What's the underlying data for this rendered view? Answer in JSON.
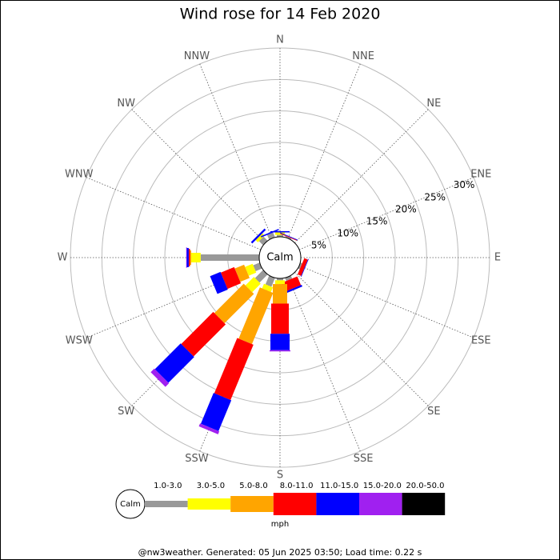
{
  "chart_data": {
    "type": "windrose",
    "title": "Wind rose for 14 Feb 2020",
    "categories": [
      "N",
      "NNE",
      "NE",
      "ENE",
      "E",
      "ESE",
      "SE",
      "SSE",
      "S",
      "SSW",
      "SW",
      "WSW",
      "W",
      "WNW",
      "NW",
      "NNW"
    ],
    "calm_label": "Calm",
    "rlim": [
      0,
      30
    ],
    "rticks": [
      {
        "value": 5,
        "label": "5%"
      },
      {
        "value": 10,
        "label": "10%"
      },
      {
        "value": 15,
        "label": "15%"
      },
      {
        "value": 20,
        "label": "20%"
      },
      {
        "value": 25,
        "label": "25%"
      },
      {
        "value": 30,
        "label": "30%"
      }
    ],
    "unit": "mph",
    "series": [
      {
        "name": "1.0-3.0",
        "color": "#999999",
        "values": [
          0.3,
          0.2,
          0,
          0,
          0,
          0.3,
          0,
          0.5,
          0.3,
          1.5,
          1.8,
          1.1,
          9.3,
          0,
          0.9,
          0.8
        ]
      },
      {
        "name": "3.0-5.0",
        "color": "#ffff00",
        "values": [
          0.4,
          0,
          0,
          0,
          0,
          0,
          0,
          0,
          0.6,
          0.8,
          1.9,
          1.3,
          1.5,
          0,
          0.5,
          0
        ]
      },
      {
        "name": "5.0-8.0",
        "color": "#ffa500",
        "values": [
          0,
          0,
          0,
          0,
          0,
          0,
          0,
          0,
          3.1,
          8.8,
          6.6,
          1.6,
          0.2,
          0,
          0,
          0
        ]
      },
      {
        "name": "8.0-11.0",
        "color": "#ff0000",
        "values": [
          0,
          0.1,
          0,
          0,
          0,
          0.6,
          0,
          1.5,
          4.8,
          9.5,
          7.2,
          2.3,
          0.2,
          0,
          0,
          0
        ]
      },
      {
        "name": "11.0-15.0",
        "color": "#0000ff",
        "values": [
          0.2,
          0.1,
          0,
          0,
          0,
          0.1,
          0,
          0.3,
          2.6,
          5.3,
          5.8,
          1.8,
          0.3,
          0,
          0.3,
          0.2
        ]
      },
      {
        "name": "15.0-20.0",
        "color": "#a020f0",
        "values": [
          0,
          0,
          0,
          0,
          0,
          0,
          0,
          0,
          0.2,
          0.5,
          0.8,
          0,
          0.1,
          0,
          0,
          0
        ]
      },
      {
        "name": "20.0-50.0",
        "color": "#000000",
        "values": [
          0,
          0,
          0,
          0,
          0,
          0,
          0,
          0,
          0,
          0,
          0,
          0,
          0,
          0,
          0,
          0
        ]
      }
    ],
    "footer": "@nw3weather. Generated: 05 Jun 2025 03:50; Load time: 0.22 s"
  }
}
